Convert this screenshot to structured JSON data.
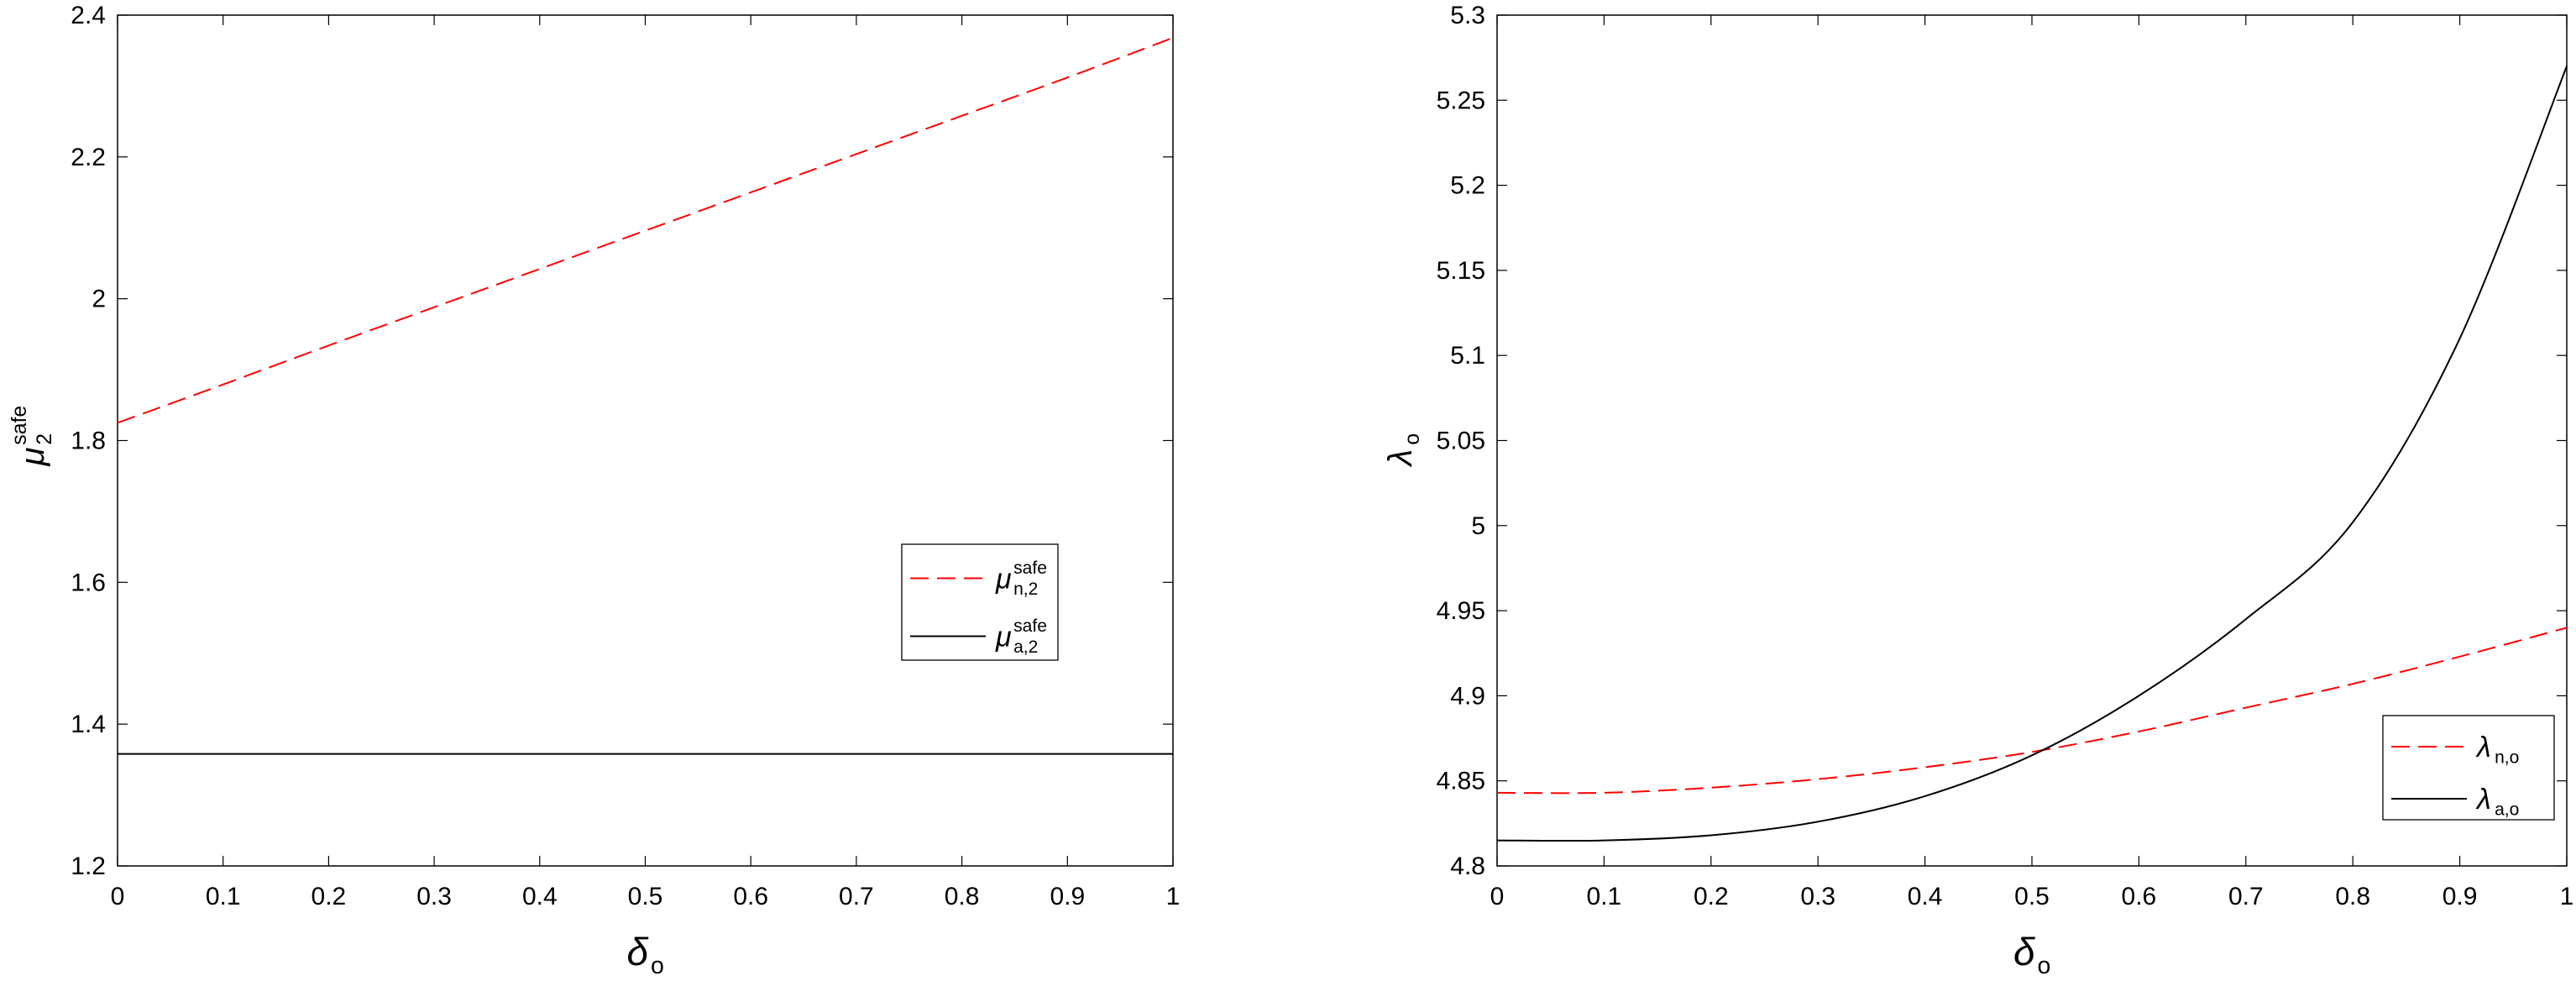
{
  "chart_data": [
    {
      "type": "line",
      "xlabel": {
        "base": "δ",
        "sub": "o"
      },
      "ylabel": {
        "base": "μ",
        "sup": "safe",
        "sub": "2"
      },
      "xlim": [
        0,
        1
      ],
      "ylim": [
        1.2,
        2.4
      ],
      "xticks": [
        0,
        0.1,
        0.2,
        0.3,
        0.4,
        0.5,
        0.6,
        0.7,
        0.8,
        0.9,
        1
      ],
      "xtick_labels": [
        "0",
        "0.1",
        "0.2",
        "0.3",
        "0.4",
        "0.5",
        "0.6",
        "0.7",
        "0.8",
        "0.9",
        "1"
      ],
      "yticks": [
        1.2,
        1.4,
        1.6,
        1.8,
        2.0,
        2.2,
        2.4
      ],
      "ytick_labels": [
        "1.2",
        "1.4",
        "1.6",
        "1.8",
        "2",
        "2.2",
        "2.4"
      ],
      "grid": false,
      "legend": {
        "placement": "center-right"
      },
      "series": [
        {
          "name": "μ n,2 safe",
          "label": {
            "base": "μ",
            "sup": "safe",
            "sub": "n,2"
          },
          "style": "dashed",
          "color": "#ff0000",
          "x": [
            0,
            0.1,
            0.2,
            0.3,
            0.4,
            0.5,
            0.6,
            0.7,
            0.8,
            0.9,
            1
          ],
          "y": [
            1.825,
            1.879,
            1.934,
            1.988,
            2.042,
            2.096,
            2.15,
            2.204,
            2.258,
            2.312,
            2.368
          ]
        },
        {
          "name": "μ a,2 safe",
          "label": {
            "base": "μ",
            "sup": "safe",
            "sub": "a,2"
          },
          "style": "solid",
          "color": "#000000",
          "x": [
            0,
            0.1,
            0.2,
            0.3,
            0.4,
            0.5,
            0.6,
            0.7,
            0.8,
            0.9,
            1
          ],
          "y": [
            1.358,
            1.358,
            1.358,
            1.358,
            1.358,
            1.358,
            1.358,
            1.358,
            1.358,
            1.358,
            1.358
          ]
        }
      ]
    },
    {
      "type": "line",
      "xlabel": {
        "base": "δ",
        "sub": "o"
      },
      "ylabel": {
        "base": "λ",
        "sub": "o"
      },
      "xlim": [
        0,
        1
      ],
      "ylim": [
        4.8,
        5.3
      ],
      "xticks": [
        0,
        0.1,
        0.2,
        0.3,
        0.4,
        0.5,
        0.6,
        0.7,
        0.8,
        0.9,
        1
      ],
      "xtick_labels": [
        "0",
        "0.1",
        "0.2",
        "0.3",
        "0.4",
        "0.5",
        "0.6",
        "0.7",
        "0.8",
        "0.9",
        "1"
      ],
      "yticks": [
        4.8,
        4.85,
        4.9,
        4.95,
        5.0,
        5.05,
        5.1,
        5.15,
        5.2,
        5.25,
        5.3
      ],
      "ytick_labels": [
        "4.8",
        "4.85",
        "4.9",
        "4.95",
        "5",
        "5.05",
        "5.1",
        "5.15",
        "5.2",
        "5.25",
        "5.3"
      ],
      "grid": false,
      "legend": {
        "placement": "bottom-right"
      },
      "series": [
        {
          "name": "λ n,o",
          "label": {
            "base": "λ",
            "sub": "n,o"
          },
          "style": "dashed",
          "color": "#ff0000",
          "x": [
            0,
            0.1,
            0.2,
            0.3,
            0.4,
            0.5,
            0.6,
            0.7,
            0.8,
            0.9,
            1
          ],
          "y": [
            4.843,
            4.843,
            4.846,
            4.851,
            4.858,
            4.867,
            4.879,
            4.893,
            4.907,
            4.923,
            4.94
          ]
        },
        {
          "name": "λ a,o",
          "label": {
            "base": "λ",
            "sub": "a,o"
          },
          "style": "solid",
          "color": "#000000",
          "x": [
            0,
            0.1,
            0.2,
            0.3,
            0.4,
            0.5,
            0.6,
            0.7,
            0.8,
            0.9,
            1
          ],
          "y": [
            4.815,
            4.815,
            4.818,
            4.826,
            4.841,
            4.865,
            4.9,
            4.945,
            5.002,
            5.11,
            5.27
          ]
        }
      ]
    }
  ]
}
